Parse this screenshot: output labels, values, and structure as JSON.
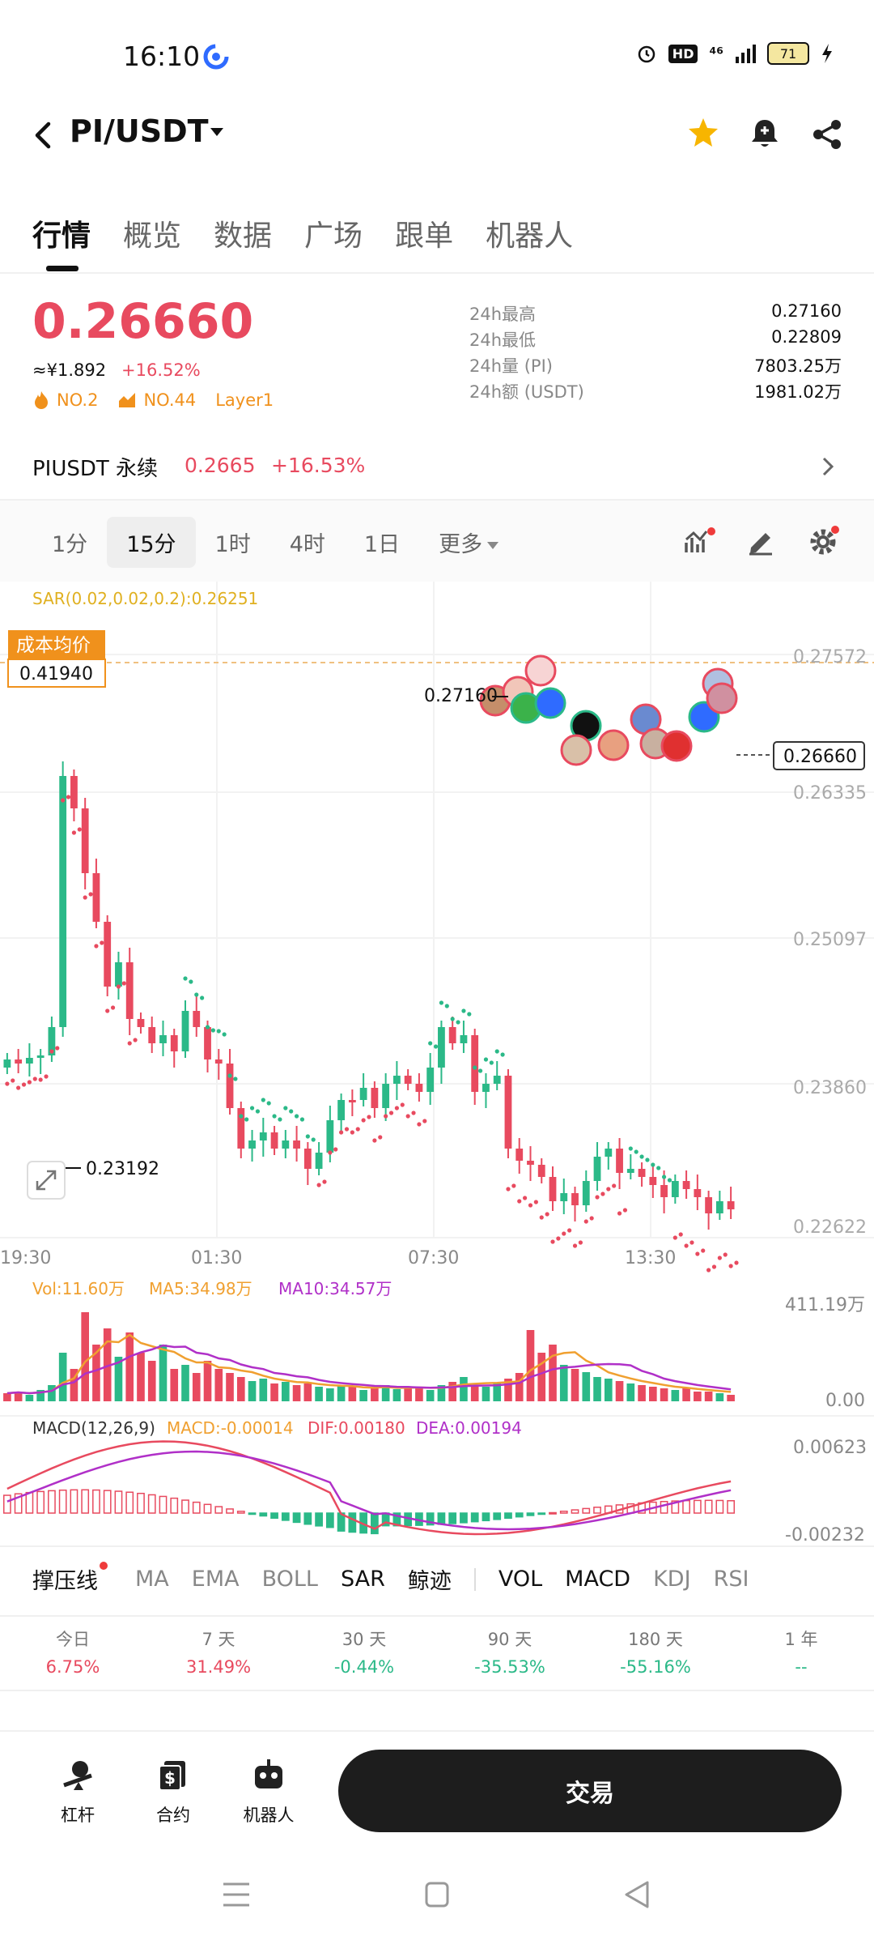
{
  "status_bar": {
    "time": "16:10",
    "signal_text": "⁴⁶",
    "hd": "HD",
    "battery": "71"
  },
  "header": {
    "pair": "PI/USDT"
  },
  "tabs": [
    {
      "label": "行情",
      "active": true
    },
    {
      "label": "概览",
      "active": false
    },
    {
      "label": "数据",
      "active": false
    },
    {
      "label": "广场",
      "active": false
    },
    {
      "label": "跟单",
      "active": false
    },
    {
      "label": "机器人",
      "active": false
    }
  ],
  "price": {
    "last": "0.26660",
    "cny": "≈¥1.892",
    "change": "+16.52%",
    "tags": [
      "NO.2",
      "NO.44",
      "Layer1"
    ]
  },
  "stats": [
    {
      "label": "24h最高",
      "value": "0.27160"
    },
    {
      "label": "24h最低",
      "value": "0.22809"
    },
    {
      "label": "24h量 (PI)",
      "value": "7803.25万"
    },
    {
      "label": "24h额 (USDT)",
      "value": "1981.02万"
    }
  ],
  "perpetual": {
    "name": "PIUSDT 永续",
    "price": "0.2665",
    "change": "+16.53%"
  },
  "intervals": {
    "items": [
      "1分",
      "15分",
      "1时",
      "4时",
      "1日"
    ],
    "active_index": 1,
    "more": "更多"
  },
  "chart": {
    "sar_label": "SAR(0.02,0.02,0.2):0.26251",
    "cost_avg_label": "成本均价",
    "cost_avg_value": "0.41940",
    "high_marker": "0.27160",
    "low_marker": "0.23192",
    "current_price": "0.26660",
    "y_ticks": [
      "0.27572",
      "0.26335",
      "0.25097",
      "0.23860",
      "0.22622"
    ],
    "x_ticks": [
      "19:30",
      "01:30",
      "07:30",
      "13:30"
    ],
    "volume": {
      "vol_label": "Vol:11.60万",
      "ma5_label": "MA5:34.98万",
      "ma10_label": "MA10:34.57万",
      "y_top": "411.19万",
      "y_bottom": "0.00"
    },
    "macd": {
      "title": "MACD(12,26,9)",
      "macd_label": "MACD:-0.00014",
      "dif_label": "DIF:0.00180",
      "dea_label": "DEA:0.00194",
      "y_top": "0.00623",
      "y_bottom": "-0.00232"
    },
    "colors": {
      "up": "#2bb988",
      "down": "#e84a5f",
      "ma5": "#f0a030",
      "ma10": "#b030c8",
      "sar": "#e0c030"
    }
  },
  "indicator_tabs": {
    "items": [
      "撑压线",
      "MA",
      "EMA",
      "BOLL",
      "SAR",
      "鲸迹",
      "VOL",
      "MACD",
      "KDJ",
      "RSI"
    ]
  },
  "performance": [
    {
      "label": "今日",
      "value": "6.75%",
      "tone": "pos"
    },
    {
      "label": "7 天",
      "value": "31.49%",
      "tone": "pos"
    },
    {
      "label": "30 天",
      "value": "-0.44%",
      "tone": "neg"
    },
    {
      "label": "90 天",
      "value": "-35.53%",
      "tone": "neg"
    },
    {
      "label": "180 天",
      "value": "-55.16%",
      "tone": "neg"
    },
    {
      "label": "1 年",
      "value": "--",
      "tone": "na"
    }
  ],
  "bottom_bar": {
    "leverage": "杠杆",
    "contract": "合约",
    "robot": "机器人",
    "trade": "交易"
  },
  "icons": [
    "back-icon",
    "caret-down-icon",
    "star-icon",
    "bell-icon",
    "share-icon",
    "chevron-right-icon",
    "indicator-icon",
    "draw-icon",
    "settings-icon",
    "expand-icon",
    "leverage-icon",
    "contract-icon",
    "robot-icon",
    "menu-icon",
    "home-icon",
    "back-nav-icon"
  ]
}
